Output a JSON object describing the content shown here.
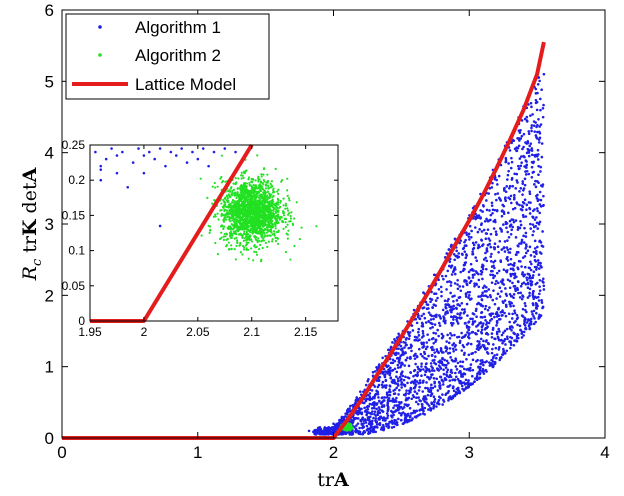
{
  "chart_data": [
    {
      "type": "scatter",
      "xlabel": "trA",
      "ylabel": "R_c trK detA",
      "xlim": [
        0,
        4
      ],
      "ylim": [
        0,
        6
      ],
      "xticks": [
        "0",
        "1",
        "2",
        "3",
        "4"
      ],
      "yticks": [
        "0",
        "1",
        "2",
        "3",
        "4",
        "5",
        "6"
      ],
      "grid": false,
      "legend_position": "top-left",
      "legend": [
        "Algorithm 1",
        "Algorithm 2",
        "Lattice Model"
      ],
      "colors": {
        "algorithm_1": "#1f1fe6",
        "algorithm_2": "#22e022",
        "lattice_model": "#e41c1c"
      },
      "series": [
        {
          "name": "Algorithm 1",
          "kind": "points",
          "color": "#1f1fe6",
          "points": [
            [
              1.82,
              0.1
            ],
            [
              1.9,
              0.15
            ],
            [
              2.0,
              0.2
            ],
            [
              2.1,
              0.25
            ],
            [
              2.2,
              0.35
            ],
            [
              2.3,
              0.45
            ],
            [
              2.4,
              0.6
            ],
            [
              2.5,
              0.75
            ],
            [
              2.6,
              0.95
            ],
            [
              2.7,
              1.15
            ],
            [
              2.8,
              1.4
            ],
            [
              2.9,
              1.7
            ],
            [
              3.0,
              2.0
            ],
            [
              3.1,
              2.4
            ],
            [
              3.2,
              2.85
            ],
            [
              3.3,
              3.35
            ],
            [
              3.4,
              3.95
            ],
            [
              3.5,
              4.6
            ],
            [
              3.55,
              5.1
            ],
            [
              3.4,
              3.1
            ],
            [
              3.3,
              2.6
            ],
            [
              3.2,
              2.2
            ],
            [
              3.1,
              1.85
            ],
            [
              3.0,
              1.55
            ],
            [
              2.9,
              1.3
            ],
            [
              2.8,
              1.05
            ],
            [
              2.7,
              0.85
            ],
            [
              2.6,
              0.65
            ],
            [
              2.5,
              0.5
            ],
            [
              2.4,
              0.38
            ],
            [
              3.35,
              3.7
            ],
            [
              3.45,
              3.0
            ],
            [
              3.3,
              2.2
            ],
            [
              3.0,
              1.4
            ],
            [
              2.8,
              1.2
            ],
            [
              2.6,
              0.8
            ],
            [
              2.4,
              0.5
            ],
            [
              2.2,
              0.25
            ],
            [
              3.5,
              4.2
            ],
            [
              3.35,
              3.3
            ]
          ]
        },
        {
          "name": "Algorithm 2",
          "kind": "cluster",
          "color": "#22e022",
          "center": [
            2.1,
            0.155
          ],
          "spread": [
            0.02,
            0.032
          ]
        },
        {
          "name": "Lattice Model",
          "kind": "line",
          "color": "#e41c1c",
          "points": [
            [
              0,
              0
            ],
            [
              2.0,
              0
            ],
            [
              2.1,
              0.25
            ],
            [
              2.2,
              0.52
            ],
            [
              2.3,
              0.82
            ],
            [
              2.4,
              1.12
            ],
            [
              2.5,
              1.42
            ],
            [
              2.6,
              1.73
            ],
            [
              2.7,
              2.05
            ],
            [
              2.8,
              2.38
            ],
            [
              2.9,
              2.72
            ],
            [
              3.0,
              3.05
            ],
            [
              3.1,
              3.4
            ],
            [
              3.2,
              3.78
            ],
            [
              3.3,
              4.18
            ],
            [
              3.4,
              4.6
            ],
            [
              3.5,
              5.1
            ],
            [
              3.55,
              5.55
            ]
          ]
        }
      ]
    },
    {
      "type": "scatter",
      "role": "inset",
      "xlim": [
        1.95,
        2.18
      ],
      "ylim": [
        0,
        0.25
      ],
      "xticks": [
        "1.95",
        "2",
        "2.05",
        "2.1",
        "2.15"
      ],
      "yticks": [
        "0",
        "0.05",
        "0.1",
        "0.15",
        "0.2",
        "0.25"
      ],
      "series": [
        {
          "name": "Algorithm 1",
          "kind": "points",
          "color": "#1f1fe6",
          "points": [
            [
              1.955,
              0.24
            ],
            [
              1.96,
              0.22
            ],
            [
              1.96,
              0.2
            ],
            [
              1.965,
              0.23
            ],
            [
              1.97,
              0.245
            ],
            [
              1.975,
              0.21
            ],
            [
              1.98,
              0.24
            ],
            [
              1.985,
              0.19
            ],
            [
              1.99,
              0.225
            ],
            [
              1.995,
              0.245
            ],
            [
              2.0,
              0.21
            ],
            [
              2.005,
              0.24
            ],
            [
              2.01,
              0.23
            ],
            [
              2.015,
              0.245
            ],
            [
              2.02,
              0.22
            ],
            [
              2.025,
              0.24
            ],
            [
              2.03,
              0.235
            ],
            [
              2.035,
              0.245
            ],
            [
              2.04,
              0.225
            ],
            [
              2.045,
              0.24
            ],
            [
              2.05,
              0.23
            ],
            [
              2.055,
              0.245
            ],
            [
              2.06,
              0.22
            ],
            [
              2.065,
              0.24
            ],
            [
              2.075,
              0.245
            ],
            [
              2.085,
              0.24
            ],
            [
              2.015,
              0.135
            ],
            [
              1.96,
              0.215
            ],
            [
              1.975,
              0.235
            ],
            [
              2.0,
              0.235
            ]
          ]
        },
        {
          "name": "Algorithm 2",
          "kind": "cluster",
          "color": "#22e022",
          "center": [
            2.1,
            0.155
          ],
          "spread": [
            0.02,
            0.032
          ]
        },
        {
          "name": "Lattice Model",
          "kind": "line",
          "color": "#e41c1c",
          "points": [
            [
              1.95,
              0
            ],
            [
              2.0,
              0
            ],
            [
              2.1,
              0.25
            ]
          ]
        }
      ]
    }
  ]
}
